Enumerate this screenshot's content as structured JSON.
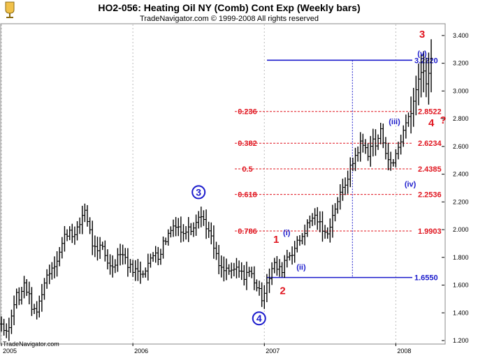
{
  "header": {
    "title": "HO2-056:  Heating Oil NY (Comb) Cont Exp  (Weekly bars)",
    "subtitle": "TradeNavigator.com © 1999-2008 All rights reserved"
  },
  "watermark": "TradeNavigator.com",
  "colors": {
    "bars": "#000000",
    "fib": "#e0141e",
    "blue": "#1a1acc",
    "grid": "#bbbbbb",
    "dot_grid": "#999999"
  },
  "chart_data": {
    "type": "ohlc",
    "x_axis": {
      "labels": [
        "2005",
        "2006",
        "2007",
        "2008"
      ],
      "range": [
        2005.0,
        2008.37
      ]
    },
    "y_axis": {
      "ticks": [
        "1.200",
        "1.400",
        "1.600",
        "1.800",
        "2.000",
        "2.200",
        "2.400",
        "2.600",
        "2.800",
        "3.000",
        "3.200",
        "3.400"
      ],
      "range": [
        1.18,
        3.48
      ]
    },
    "grid": {
      "vertical_dotted": true
    },
    "price_path": [
      [
        2005.0,
        1.32
      ],
      [
        2005.04,
        1.27
      ],
      [
        2005.08,
        1.38
      ],
      [
        2005.11,
        1.55
      ],
      [
        2005.14,
        1.48
      ],
      [
        2005.17,
        1.62
      ],
      [
        2005.2,
        1.55
      ],
      [
        2005.23,
        1.45
      ],
      [
        2005.26,
        1.38
      ],
      [
        2005.29,
        1.48
      ],
      [
        2005.32,
        1.6
      ],
      [
        2005.35,
        1.68
      ],
      [
        2005.39,
        1.74
      ],
      [
        2005.42,
        1.78
      ],
      [
        2005.45,
        1.86
      ],
      [
        2005.48,
        1.95
      ],
      [
        2005.52,
        2.0
      ],
      [
        2005.56,
        1.95
      ],
      [
        2005.6,
        2.05
      ],
      [
        2005.63,
        2.16
      ],
      [
        2005.66,
        2.05
      ],
      [
        2005.69,
        1.9
      ],
      [
        2005.73,
        1.82
      ],
      [
        2005.76,
        1.9
      ],
      [
        2005.79,
        1.82
      ],
      [
        2005.83,
        1.72
      ],
      [
        2005.87,
        1.78
      ],
      [
        2005.9,
        1.85
      ],
      [
        2005.94,
        1.8
      ],
      [
        2005.97,
        1.73
      ],
      [
        2006.0,
        1.72
      ],
      [
        2006.04,
        1.69
      ],
      [
        2006.08,
        1.7
      ],
      [
        2006.11,
        1.75
      ],
      [
        2006.14,
        1.78
      ],
      [
        2006.17,
        1.85
      ],
      [
        2006.2,
        1.8
      ],
      [
        2006.23,
        1.9
      ],
      [
        2006.26,
        1.95
      ],
      [
        2006.3,
        2.02
      ],
      [
        2006.33,
        2.05
      ],
      [
        2006.36,
        2.0
      ],
      [
        2006.39,
        1.95
      ],
      [
        2006.42,
        2.05
      ],
      [
        2006.45,
        2.0
      ],
      [
        2006.48,
        2.08
      ],
      [
        2006.51,
        2.1
      ],
      [
        2006.54,
        2.07
      ],
      [
        2006.57,
        2.0
      ],
      [
        2006.6,
        1.92
      ],
      [
        2006.63,
        1.82
      ],
      [
        2006.66,
        1.72
      ],
      [
        2006.69,
        1.7
      ],
      [
        2006.72,
        1.72
      ],
      [
        2006.75,
        1.68
      ],
      [
        2006.78,
        1.72
      ],
      [
        2006.81,
        1.7
      ],
      [
        2006.84,
        1.66
      ],
      [
        2006.87,
        1.7
      ],
      [
        2006.9,
        1.68
      ],
      [
        2006.93,
        1.62
      ],
      [
        2006.96,
        1.55
      ],
      [
        2006.99,
        1.5
      ],
      [
        2007.01,
        1.62
      ],
      [
        2007.04,
        1.66
      ],
      [
        2007.07,
        1.75
      ],
      [
        2007.1,
        1.72
      ],
      [
        2007.13,
        1.7
      ],
      [
        2007.16,
        1.8
      ],
      [
        2007.19,
        1.82
      ],
      [
        2007.22,
        1.85
      ],
      [
        2007.25,
        1.9
      ],
      [
        2007.28,
        1.94
      ],
      [
        2007.31,
        2.0
      ],
      [
        2007.34,
        2.05
      ],
      [
        2007.37,
        2.1
      ],
      [
        2007.4,
        2.08
      ],
      [
        2007.43,
        2.02
      ],
      [
        2007.46,
        1.96
      ],
      [
        2007.49,
        2.01
      ],
      [
        2007.52,
        2.1
      ],
      [
        2007.55,
        2.2
      ],
      [
        2007.58,
        2.25
      ],
      [
        2007.61,
        2.32
      ],
      [
        2007.64,
        2.4
      ],
      [
        2007.67,
        2.48
      ],
      [
        2007.7,
        2.55
      ],
      [
        2007.73,
        2.62
      ],
      [
        2007.76,
        2.6
      ],
      [
        2007.79,
        2.55
      ],
      [
        2007.82,
        2.65
      ],
      [
        2007.85,
        2.6
      ],
      [
        2007.88,
        2.72
      ],
      [
        2007.91,
        2.62
      ],
      [
        2007.94,
        2.52
      ],
      [
        2007.97,
        2.44
      ],
      [
        2008.0,
        2.55
      ],
      [
        2008.03,
        2.62
      ],
      [
        2008.06,
        2.72
      ],
      [
        2008.09,
        2.8
      ],
      [
        2008.12,
        2.88
      ],
      [
        2008.15,
        2.98
      ],
      [
        2008.18,
        3.15
      ],
      [
        2008.21,
        3.12
      ],
      [
        2008.24,
        3.05
      ],
      [
        2008.27,
        3.22
      ]
    ],
    "levels": [
      {
        "ratio": "",
        "price": "3.2220",
        "value": 3.222,
        "color": "blue"
      },
      {
        "ratio": "0.236",
        "price": "2.8522",
        "value": 2.8522,
        "color": "red"
      },
      {
        "ratio": "0.382",
        "price": "2.6234",
        "value": 2.6234,
        "color": "red"
      },
      {
        "ratio": "0.5",
        "price": "2.4385",
        "value": 2.4385,
        "color": "red"
      },
      {
        "ratio": "0.618",
        "price": "2.2536",
        "value": 2.2536,
        "color": "red"
      },
      {
        "ratio": "0.786",
        "price": "1.9903",
        "value": 1.9903,
        "color": "red"
      },
      {
        "ratio": "",
        "price": "1.6550",
        "value": 1.655,
        "color": "blue"
      }
    ],
    "fib_time_marker": 2007.67,
    "wave_labels": [
      {
        "text": "3",
        "style": "circle",
        "x": 2006.5,
        "y": 2.27
      },
      {
        "text": "4",
        "style": "circle",
        "x": 2006.96,
        "y": 1.36
      },
      {
        "text": "1",
        "style": "red",
        "x": 2007.09,
        "y": 1.93
      },
      {
        "text": "2",
        "style": "red",
        "x": 2007.14,
        "y": 1.56
      },
      {
        "text": "(i)",
        "style": "blue",
        "x": 2007.17,
        "y": 1.98
      },
      {
        "text": "(ii)",
        "style": "blue",
        "x": 2007.28,
        "y": 1.73
      },
      {
        "text": "(iii)",
        "style": "blue",
        "x": 2007.99,
        "y": 2.78
      },
      {
        "text": "(iv)",
        "style": "blue",
        "x": 2008.11,
        "y": 2.33
      },
      {
        "text": "3",
        "style": "red",
        "x": 2008.2,
        "y": 3.41
      },
      {
        "text": "(v)",
        "style": "blue",
        "x": 2008.2,
        "y": 3.27
      },
      {
        "text": "4",
        "style": "red",
        "x": 2008.27,
        "y": 2.77
      },
      {
        "text": "?",
        "style": "red",
        "x": 2008.36,
        "y": 2.79
      }
    ]
  }
}
